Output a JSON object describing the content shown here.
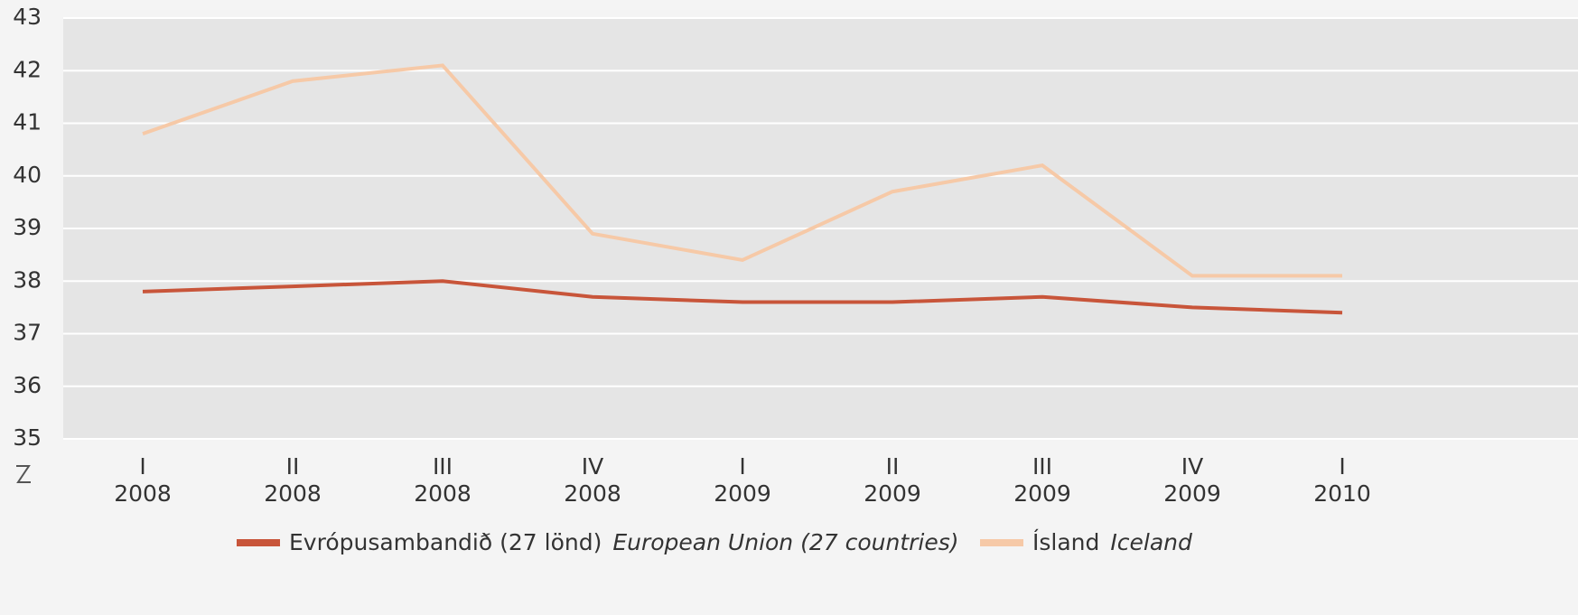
{
  "chart_data": {
    "type": "line",
    "categories": [
      [
        "I",
        "2008"
      ],
      [
        "II",
        "2008"
      ],
      [
        "III",
        "2008"
      ],
      [
        "IV",
        "2008"
      ],
      [
        "I",
        "2009"
      ],
      [
        "II",
        "2009"
      ],
      [
        "III",
        "2009"
      ],
      [
        "IV",
        "2009"
      ],
      [
        "I",
        "2010"
      ]
    ],
    "series": [
      {
        "name": [
          "Evrópusambandið (27 lönd)",
          "European Union (27 countries)"
        ],
        "color": "#c8553a",
        "values": [
          37.8,
          37.9,
          38.0,
          37.7,
          37.6,
          37.6,
          37.7,
          37.5,
          37.4
        ]
      },
      {
        "name": [
          "Ísland",
          "Iceland"
        ],
        "color": "#f6c9a7",
        "values": [
          40.8,
          41.8,
          42.1,
          38.9,
          38.4,
          39.7,
          40.2,
          38.1,
          38.1
        ]
      }
    ],
    "ylim": [
      35,
      43
    ],
    "yticks": [
      35,
      36,
      37,
      38,
      39,
      40,
      41,
      42,
      43
    ],
    "grid": true,
    "legend": "bottom"
  }
}
